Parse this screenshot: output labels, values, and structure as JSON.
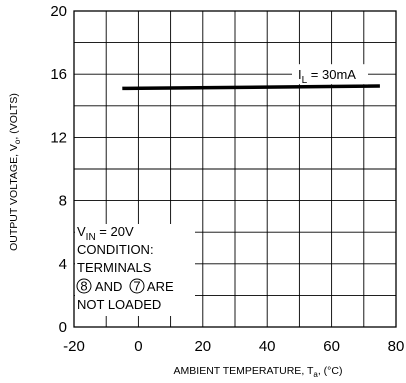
{
  "chart_data": {
    "type": "line",
    "xlim": [
      -20,
      80
    ],
    "ylim": [
      0,
      20
    ],
    "x_ticks": [
      "-20",
      "0",
      "20",
      "40",
      "60",
      "80"
    ],
    "y_ticks": [
      "0",
      "4",
      "8",
      "12",
      "16",
      "20"
    ],
    "grid": true,
    "xlabel": {
      "main": "AMBIENT TEMPERATURE, T",
      "sub": "a",
      "unit": ", (°C)"
    },
    "ylabel": {
      "main": "OUTPUT  VOLTAGE, V",
      "sub": "o",
      "unit": ", (VOLTS)"
    },
    "series": [
      {
        "name": "I_L = 30mA",
        "x": [
          -5,
          75
        ],
        "y": [
          15.1,
          15.25
        ],
        "color": "#000000"
      }
    ],
    "series_label": {
      "main": "I",
      "sub": "L",
      "rest": " = 30mA"
    },
    "condition_lines": [
      {
        "main": "V",
        "sub": "IN",
        "rest": " = 20V"
      },
      {
        "text": "CONDITION:"
      },
      {
        "text": "TERMINALS"
      },
      {
        "circled1": "8",
        "middle": " AND ",
        "circled2": "7",
        "end": " ARE"
      },
      {
        "text": "NOT LOADED"
      }
    ]
  }
}
